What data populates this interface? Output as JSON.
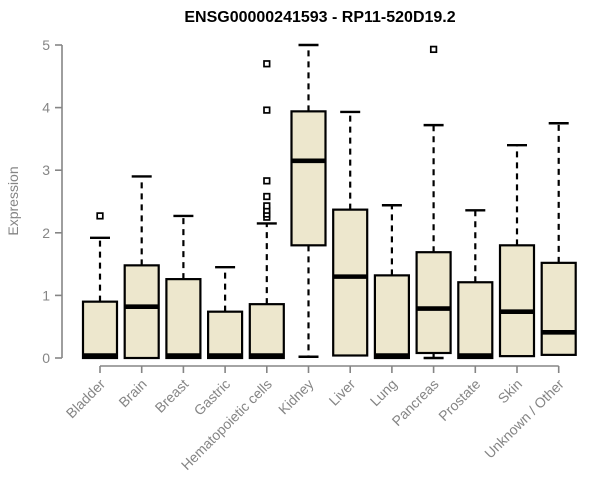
{
  "chart_data": {
    "type": "boxplot",
    "title": "ENSG00000241593 - RP11-520D19.2",
    "ylabel": "Expression",
    "xlabel": "",
    "ylim": [
      0,
      5
    ],
    "yticks": [
      0,
      1,
      2,
      3,
      4,
      5
    ],
    "grid": false,
    "legend": "none",
    "categories": [
      "Bladder",
      "Brain",
      "Breast",
      "Gastric",
      "Hematopoietic cells",
      "Kidney",
      "Liver",
      "Lung",
      "Pancreas",
      "Prostate",
      "Skin",
      "Unknown / Other"
    ],
    "boxes": [
      {
        "tissue": "Bladder",
        "q1": 0.0,
        "median": 0.02,
        "q3": 0.9,
        "whisker_low": 0.0,
        "whisker_high": 1.92,
        "outliers": [
          2.27
        ]
      },
      {
        "tissue": "Brain",
        "q1": 0.0,
        "median": 0.82,
        "q3": 1.48,
        "whisker_low": 0.0,
        "whisker_high": 2.9,
        "outliers": []
      },
      {
        "tissue": "Breast",
        "q1": 0.0,
        "median": 0.02,
        "q3": 1.26,
        "whisker_low": 0.0,
        "whisker_high": 2.27,
        "outliers": []
      },
      {
        "tissue": "Gastric",
        "q1": 0.0,
        "median": 0.02,
        "q3": 0.74,
        "whisker_low": 0.0,
        "whisker_high": 1.45,
        "outliers": []
      },
      {
        "tissue": "Hematopoietic cells",
        "q1": 0.0,
        "median": 0.02,
        "q3": 0.86,
        "whisker_low": 0.0,
        "whisker_high": 2.15,
        "outliers": [
          2.25,
          2.3,
          2.36,
          2.43,
          2.58,
          2.83,
          3.96,
          4.7
        ]
      },
      {
        "tissue": "Kidney",
        "q1": 1.8,
        "median": 3.15,
        "q3": 3.94,
        "whisker_low": 0.02,
        "whisker_high": 5.0,
        "outliers": []
      },
      {
        "tissue": "Liver",
        "q1": 0.04,
        "median": 1.3,
        "q3": 2.37,
        "whisker_low": 0.04,
        "whisker_high": 3.93,
        "outliers": []
      },
      {
        "tissue": "Lung",
        "q1": 0.0,
        "median": 0.02,
        "q3": 1.32,
        "whisker_low": 0.0,
        "whisker_high": 2.44,
        "outliers": []
      },
      {
        "tissue": "Pancreas",
        "q1": 0.08,
        "median": 0.79,
        "q3": 1.69,
        "whisker_low": 0.0,
        "whisker_high": 3.72,
        "outliers": [
          4.93
        ]
      },
      {
        "tissue": "Prostate",
        "q1": 0.0,
        "median": 0.02,
        "q3": 1.21,
        "whisker_low": 0.0,
        "whisker_high": 2.36,
        "outliers": []
      },
      {
        "tissue": "Skin",
        "q1": 0.03,
        "median": 0.74,
        "q3": 1.8,
        "whisker_low": 0.03,
        "whisker_high": 3.4,
        "outliers": []
      },
      {
        "tissue": "Unknown / Other",
        "q1": 0.05,
        "median": 0.41,
        "q3": 1.52,
        "whisker_low": 0.05,
        "whisker_high": 3.75,
        "outliers": []
      }
    ],
    "colors": {
      "box_fill": "#EDE7CD",
      "box_border": "#000000",
      "median": "#000000",
      "whisker": "#000000",
      "axis": "#858585",
      "title": "#000000",
      "background": "#ffffff"
    }
  }
}
